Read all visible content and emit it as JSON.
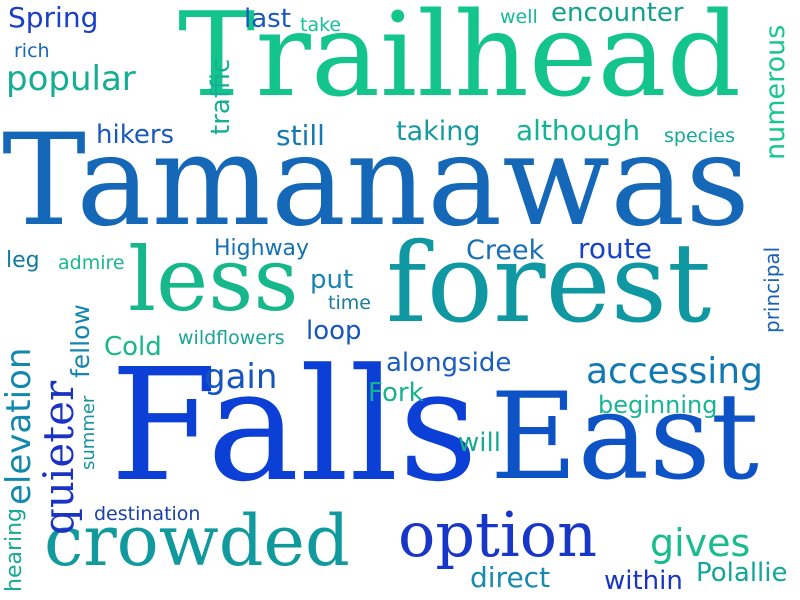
{
  "words": [
    {
      "text": "Tamanawas",
      "color": "#1567b8"
    },
    {
      "text": "Falls",
      "color": "#0b3fd6"
    },
    {
      "text": "East",
      "color": "#0d53c6"
    },
    {
      "text": "forest",
      "color": "#0f97a2"
    },
    {
      "text": "Trailhead",
      "color": "#13c48b"
    },
    {
      "text": "crowded",
      "color": "#119a9e"
    },
    {
      "text": "less",
      "color": "#16b78b"
    },
    {
      "text": "option",
      "color": "#1836c8"
    },
    {
      "text": "accessing",
      "color": "#127ab2"
    },
    {
      "text": "popular",
      "color": "#15ad94"
    },
    {
      "text": "although",
      "color": "#13b393"
    },
    {
      "text": "quieter",
      "color": "#1b33c4"
    },
    {
      "text": "elevation",
      "color": "#1388ad"
    },
    {
      "text": "alongside",
      "color": "#17c78b"
    },
    {
      "text": "numerous",
      "color": "#1b5ec1"
    },
    {
      "text": "gives",
      "color": "#19bd8d"
    },
    {
      "text": "gain",
      "color": "#1455c0"
    },
    {
      "text": "Creek",
      "color": "#1a6fb4"
    },
    {
      "text": "route",
      "color": "#1744c6"
    },
    {
      "text": "Spring",
      "color": "#1a3fc9"
    },
    {
      "text": "encounter",
      "color": "#14a08f"
    },
    {
      "text": "taking",
      "color": "#169a9f"
    },
    {
      "text": "hikers",
      "color": "#1a59bd"
    },
    {
      "text": "beginning",
      "color": "#18b696"
    },
    {
      "text": "loop",
      "color": "#1757c0"
    },
    {
      "text": "Cold",
      "color": "#17b98a"
    },
    {
      "text": "still",
      "color": "#147ab0"
    },
    {
      "text": "direct",
      "color": "#188ab0"
    },
    {
      "text": "within",
      "color": "#1a35c4"
    },
    {
      "text": "Polallie",
      "color": "#14a69a"
    },
    {
      "text": "put",
      "color": "#1784b2"
    },
    {
      "text": "last",
      "color": "#1a55c0"
    },
    {
      "text": "will",
      "color": "#18ab8e"
    },
    {
      "text": "Fork",
      "color": "#19b28e"
    },
    {
      "text": "traffic",
      "color": "#14af94"
    },
    {
      "text": "fellow",
      "color": "#1685b0"
    },
    {
      "text": "hearing",
      "color": "#18aa95"
    },
    {
      "text": "Highway",
      "color": "#1571b3"
    },
    {
      "text": "leg",
      "color": "#127a9f"
    },
    {
      "text": "admire",
      "color": "#18b98f"
    },
    {
      "text": "time",
      "color": "#167c9f"
    },
    {
      "text": "wildflowers",
      "color": "#1aa398"
    },
    {
      "text": "destination",
      "color": "#1a3fa8"
    },
    {
      "text": "principal",
      "color": "#1a62b2"
    },
    {
      "text": "summer",
      "color": "#1793a0"
    },
    {
      "text": "species",
      "color": "#16a89a"
    },
    {
      "text": "rich",
      "color": "#1866b8"
    },
    {
      "text": "take",
      "color": "#16c09a"
    },
    {
      "text": "well",
      "color": "#17b89a"
    }
  ]
}
